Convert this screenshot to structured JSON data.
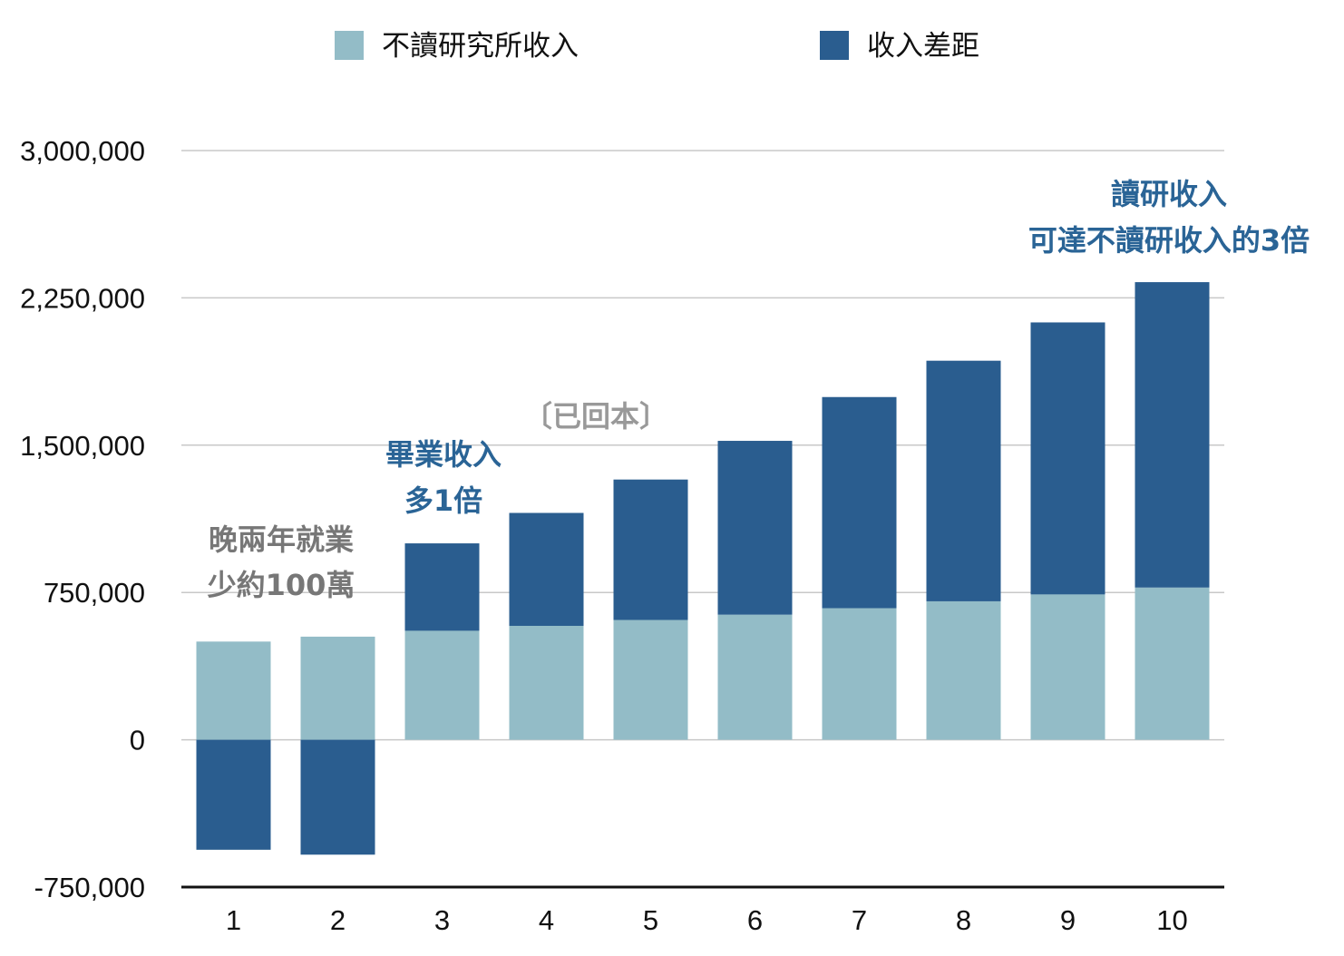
{
  "chart_data": {
    "type": "bar",
    "stacked": true,
    "categories": [
      "1",
      "2",
      "3",
      "4",
      "5",
      "6",
      "7",
      "8",
      "9",
      "10"
    ],
    "series": [
      {
        "name": "不讀研究所收入",
        "color": "#93bcc7",
        "values": [
          500000,
          525000,
          555000,
          580000,
          610000,
          637000,
          670000,
          705000,
          740000,
          775000
        ]
      },
      {
        "name": "收入差距",
        "color": "#2a5d8f",
        "values": [
          -560000,
          -585000,
          445000,
          575000,
          715000,
          885000,
          1075000,
          1225000,
          1385000,
          1555000
        ]
      }
    ],
    "yticks": [
      "3,000,000",
      "2,250,000",
      "1,500,000",
      "750,000",
      "0",
      "-750,000"
    ],
    "ytick_values": [
      3000000,
      2250000,
      1500000,
      750000,
      0,
      -750000
    ],
    "ylim": [
      -750000,
      3000000
    ],
    "grid": true,
    "legend_position": "top",
    "annotations": [
      {
        "lines": [
          "晚兩年就業",
          "少約100萬"
        ],
        "color": "#777777"
      },
      {
        "lines": [
          "畢業收入",
          "多1倍"
        ],
        "color": "#2a6496"
      },
      {
        "lines": [
          "〔已回本〕"
        ],
        "color": "#999999"
      },
      {
        "lines": [
          "讀研收入",
          "可達不讀研收入的3倍"
        ],
        "color": "#2a6496"
      }
    ]
  }
}
